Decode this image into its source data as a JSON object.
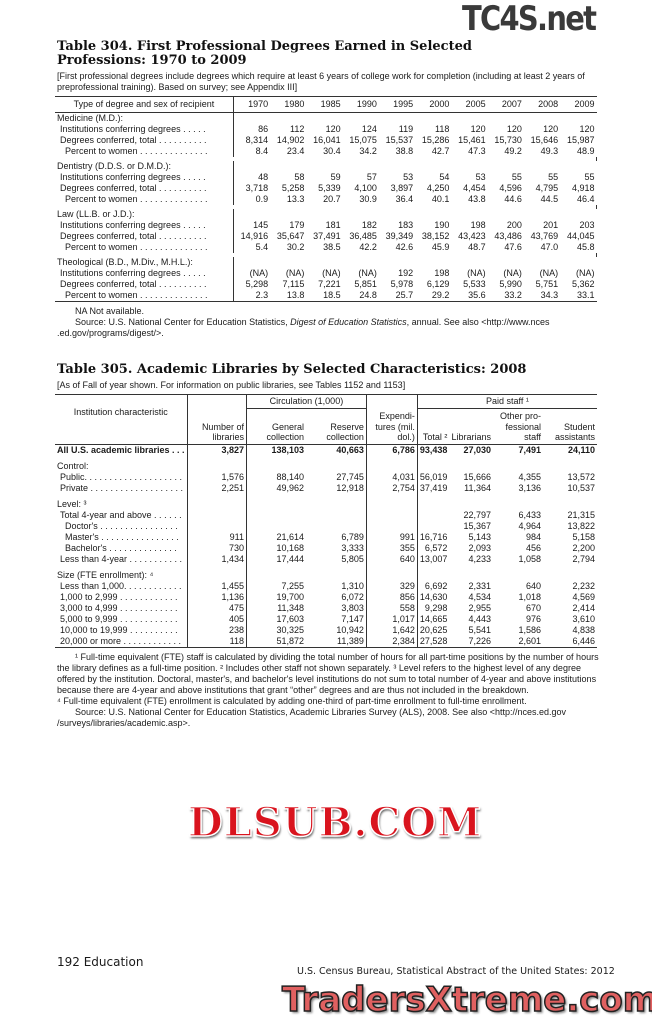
{
  "t304": {
    "title": "Table 304. First Professional Degrees Earned in Selected Professions: 1970 to 2009",
    "headnote": "[First professional degrees include degrees which require at least 6 years of college work for completion (including at least 2 years of preprofessional training). Based on survey; see Appendix III]",
    "stub_header": "Type of degree and sex of recipient",
    "years": [
      "1970",
      "1980",
      "1985",
      "1990",
      "1995",
      "2000",
      "2005",
      "2007",
      "2008",
      "2009"
    ],
    "groups": [
      {
        "label": "Medicine (M.D.):",
        "rows": [
          {
            "label": "Institutions conferring degrees . . . . .",
            "values": [
              "86",
              "112",
              "120",
              "124",
              "119",
              "118",
              "120",
              "120",
              "120",
              "120"
            ]
          },
          {
            "label": "Degrees conferred, total . . . . . . . . . .",
            "values": [
              "8,314",
              "14,902",
              "16,041",
              "15,075",
              "15,537",
              "15,286",
              "15,461",
              "15,730",
              "15,646",
              "15,987"
            ]
          },
          {
            "label": "Percent to women . . . . . . . . . . . . . .",
            "values": [
              "8.4",
              "23.4",
              "30.4",
              "34.2",
              "38.8",
              "42.7",
              "47.3",
              "49.2",
              "49.3",
              "48.9"
            ]
          }
        ]
      },
      {
        "label": "Dentistry (D.D.S. or D.M.D.):",
        "rows": [
          {
            "label": "Institutions conferring degrees . . . . .",
            "values": [
              "48",
              "58",
              "59",
              "57",
              "53",
              "54",
              "53",
              "55",
              "55",
              "55"
            ]
          },
          {
            "label": "Degrees conferred, total . . . . . . . . . .",
            "values": [
              "3,718",
              "5,258",
              "5,339",
              "4,100",
              "3,897",
              "4,250",
              "4,454",
              "4,596",
              "4,795",
              "4,918"
            ]
          },
          {
            "label": "Percent to women . . . . . . . . . . . . . .",
            "values": [
              "0.9",
              "13.3",
              "20.7",
              "30.9",
              "36.4",
              "40.1",
              "43.8",
              "44.6",
              "44.5",
              "46.4"
            ]
          }
        ]
      },
      {
        "label": "Law (LL.B. or J.D.):",
        "rows": [
          {
            "label": "Institutions conferring degrees . . . . .",
            "values": [
              "145",
              "179",
              "181",
              "182",
              "183",
              "190",
              "198",
              "200",
              "201",
              "203"
            ]
          },
          {
            "label": "Degrees conferred, total . . . . . . . . . .",
            "values": [
              "14,916",
              "35,647",
              "37,491",
              "36,485",
              "39,349",
              "38,152",
              "43,423",
              "43,486",
              "43,769",
              "44,045"
            ]
          },
          {
            "label": "Percent to women . . . . . . . . . . . . . .",
            "values": [
              "5.4",
              "30.2",
              "38.5",
              "42.2",
              "42.6",
              "45.9",
              "48.7",
              "47.6",
              "47.0",
              "45.8"
            ]
          }
        ]
      },
      {
        "label": "Theological (B.D., M.Div., M.H.L.):",
        "rows": [
          {
            "label": "Institutions conferring degrees . . . . .",
            "values": [
              "(NA)",
              "(NA)",
              "(NA)",
              "(NA)",
              "192",
              "198",
              "(NA)",
              "(NA)",
              "(NA)",
              "(NA)"
            ]
          },
          {
            "label": "Degrees conferred, total . . . . . . . . . .",
            "values": [
              "5,298",
              "7,115",
              "7,221",
              "5,851",
              "5,978",
              "6,129",
              "5,533",
              "5,990",
              "5,751",
              "5,362"
            ]
          },
          {
            "label": "Percent to women . . . . . . . . . . . . . .",
            "values": [
              "2.3",
              "13.8",
              "18.5",
              "24.8",
              "25.7",
              "29.2",
              "35.6",
              "33.2",
              "34.3",
              "33.1"
            ]
          }
        ]
      }
    ],
    "note_na": "NA Not available.",
    "source_pre": "Source: U.S. National Center for Education Statistics, ",
    "source_italic": "Digest of Education Statistics",
    "source_post": ", annual. See also <http://www.nces .ed.gov/programs/digest/>."
  },
  "t305": {
    "title": "Table 305. Academic Libraries by Selected Characteristics: 2008",
    "headnote": "[As of Fall of year shown. For information on public libraries, see Tables 1152 and 1153]",
    "headers": {
      "stub": "Institution characteristic",
      "num_libraries": "Number of libraries",
      "circulation": "Circulation (1,000)",
      "general": "General collection",
      "reserve": "Reserve collection",
      "expenditures": "Expendi- tures (mil. dol.)",
      "paid_staff": "Paid staff ¹",
      "total": "Total ²",
      "librarians": "Librarians",
      "other_prof": "Other pro- fessional staff",
      "student": "Student assistants"
    },
    "rows": [
      {
        "type": "bold",
        "label": "All U.S. academic libraries . . .",
        "values": [
          "3,827",
          "138,103",
          "40,663",
          "6,786",
          "93,438",
          "27,030",
          "7,491",
          "24,110"
        ]
      },
      {
        "type": "group",
        "label": "Control:"
      },
      {
        "type": "row",
        "indent": 1,
        "label": "Public. . . . . . . . . . . . . . . . . . . .",
        "values": [
          "1,576",
          "88,140",
          "27,745",
          "4,031",
          "56,019",
          "15,666",
          "4,355",
          "13,572"
        ]
      },
      {
        "type": "row",
        "indent": 1,
        "label": "Private . . . . . . . . . . . . . . . . . . .",
        "values": [
          "2,251",
          "49,962",
          "12,918",
          "2,754",
          "37,419",
          "11,364",
          "3,136",
          "10,537"
        ]
      },
      {
        "type": "group",
        "label": "Level: ³"
      },
      {
        "type": "row",
        "indent": 1,
        "label": "Total 4-year and above . . . . . .",
        "values": [
          "",
          "",
          "",
          "",
          "",
          "22,797",
          "6,433",
          "21,315"
        ]
      },
      {
        "type": "row",
        "indent": 2,
        "label": "Doctor's . . . . . . . . . . . . . . . .",
        "values": [
          "",
          "",
          "",
          "",
          "",
          "15,367",
          "4,964",
          "13,822"
        ]
      },
      {
        "type": "row",
        "indent": 2,
        "label": "Master's . . . . . . . . . . . . . . . .",
        "values": [
          "911",
          "21,614",
          "6,789",
          "991",
          "16,716",
          "5,143",
          "984",
          "5,158"
        ]
      },
      {
        "type": "row",
        "indent": 2,
        "label": "Bachelor's . . . . . . . . . . . . . .",
        "values": [
          "730",
          "10,168",
          "3,333",
          "355",
          "6,572",
          "2,093",
          "456",
          "2,200"
        ]
      },
      {
        "type": "row",
        "indent": 1,
        "label": "Less than 4-year . . . . . . . . . . .",
        "values": [
          "1,434",
          "17,444",
          "5,805",
          "640",
          "13,007",
          "4,233",
          "1,058",
          "2,794"
        ]
      },
      {
        "type": "group",
        "label": "Size (FTE enrollment): ⁴"
      },
      {
        "type": "row",
        "indent": 1,
        "label": "Less than 1,000. . . . . . . . . . . .",
        "values": [
          "1,455",
          "7,255",
          "1,310",
          "329",
          "6,692",
          "2,331",
          "640",
          "2,232"
        ]
      },
      {
        "type": "row",
        "indent": 1,
        "label": "1,000 to 2,999 . . . . . . . . . . . .",
        "values": [
          "1,136",
          "19,700",
          "6,072",
          "856",
          "14,630",
          "4,534",
          "1,018",
          "4,569"
        ]
      },
      {
        "type": "row",
        "indent": 1,
        "label": "3,000 to 4,999 . . . . . . . . . . . .",
        "values": [
          "475",
          "11,348",
          "3,803",
          "558",
          "9,298",
          "2,955",
          "670",
          "2,414"
        ]
      },
      {
        "type": "row",
        "indent": 1,
        "label": "5,000 to 9,999 . . . . . . . . . . . .",
        "values": [
          "405",
          "17,603",
          "7,147",
          "1,017",
          "14,665",
          "4,443",
          "976",
          "3,610"
        ]
      },
      {
        "type": "row",
        "indent": 1,
        "label": "10,000 to 19,999 . . . . . . . . . .",
        "values": [
          "238",
          "30,325",
          "10,942",
          "1,642",
          "20,625",
          "5,541",
          "1,586",
          "4,838"
        ]
      },
      {
        "type": "row",
        "indent": 1,
        "label": "20,000 or more . . . . . . . . . . . .",
        "values": [
          "118",
          "51,872",
          "11,389",
          "2,384",
          "27,528",
          "7,226",
          "2,601",
          "6,446"
        ]
      }
    ],
    "footnotes": "¹ Full-time equivalent (FTE) staff is calculated by dividing the total number of hours for all part-time positions by the number of hours the library defines as a full-time position. ² Includes other staff not shown separately. ³ Level refers to the highest level of any degree offered by the institution. Doctoral, master's, and bachelor's level institutions do not sum to total number of 4-year and above institutions because there are 4-year and above institutions that grant “other” degrees and are thus not included in the breakdown.",
    "footnote4": "⁴ Full-time equivalent (FTE) enrollment is calculated by adding one-third of part-time enrollment to full-time enrollment.",
    "source": "Source: U.S. National Center for Education Statistics, Academic Libraries Survey (ALS), 2008. See also <http://nces.ed.gov /surveys/libraries/academic.asp>."
  },
  "footer": {
    "folio": "192  Education",
    "running": "U.S. Census Bureau, Statistical Abstract of the United States: 2012"
  },
  "watermarks": [
    "TC4S.net",
    "DLSUB.COM",
    "TradersXtreme.com"
  ]
}
